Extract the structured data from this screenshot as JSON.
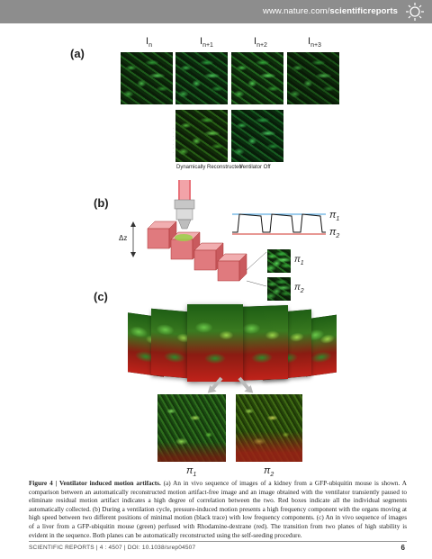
{
  "header": {
    "url_prefix": "www.nature.com/",
    "url_strong": "scientificreports"
  },
  "panel_a": {
    "label": "(a)",
    "columns": [
      {
        "base": "I",
        "sub": "n"
      },
      {
        "base": "I",
        "sub": "n+1"
      },
      {
        "base": "I",
        "sub": "n+2"
      },
      {
        "base": "I",
        "sub": "n+3"
      }
    ],
    "bottom_captions": [
      "Dynamically Reconstructed",
      "Ventilator Off"
    ]
  },
  "panel_b": {
    "label": "(b)",
    "dz_label": "Δz",
    "pi1": "π",
    "pi1_sub": "1",
    "pi2": "π",
    "pi2_sub": "2"
  },
  "panel_c": {
    "label": "(c)",
    "pi1": "π",
    "pi1_sub": "1",
    "pi2": "π",
    "pi2_sub": "2"
  },
  "caption": {
    "lead": "Figure 4 | Ventilator induced motion artifacts.",
    "body": " (a) An in vivo sequence of images of a kidney from a GFP-ubiquitin mouse is shown. A comparison between an automatically reconstructed motion artifact-free image and an image obtained with the ventilator transiently paused to eliminate residual motion artifact indicates a high degree of correlation between the two. Red boxes indicate all the individual segments automatically collected. (b) During a ventilation cycle, pressure-induced motion presents a high frequency component with the organs moving at high speed between two different positions of minimal motion (black trace) with low frequency components. (c) An in vivo sequence of images of a liver from a GFP-ubiquitin mouse (green) perfused with Rhodamine-dextrane (red). The transition from two planes of high stability is evident in the sequence. Both planes can be automatically reconstructed using the self-seeding procedure."
  },
  "footer": {
    "journal": "SCIENTIFIC REPORTS",
    "citation": " | 4 : 4507 | DOI: 10.1038/srep04507",
    "page": "6"
  },
  "colors": {
    "header_bg": "#8d8d8d",
    "trace_blue": "#3a9ad9",
    "trace_red": "#d0302a",
    "laser_red": "#e0525a"
  }
}
